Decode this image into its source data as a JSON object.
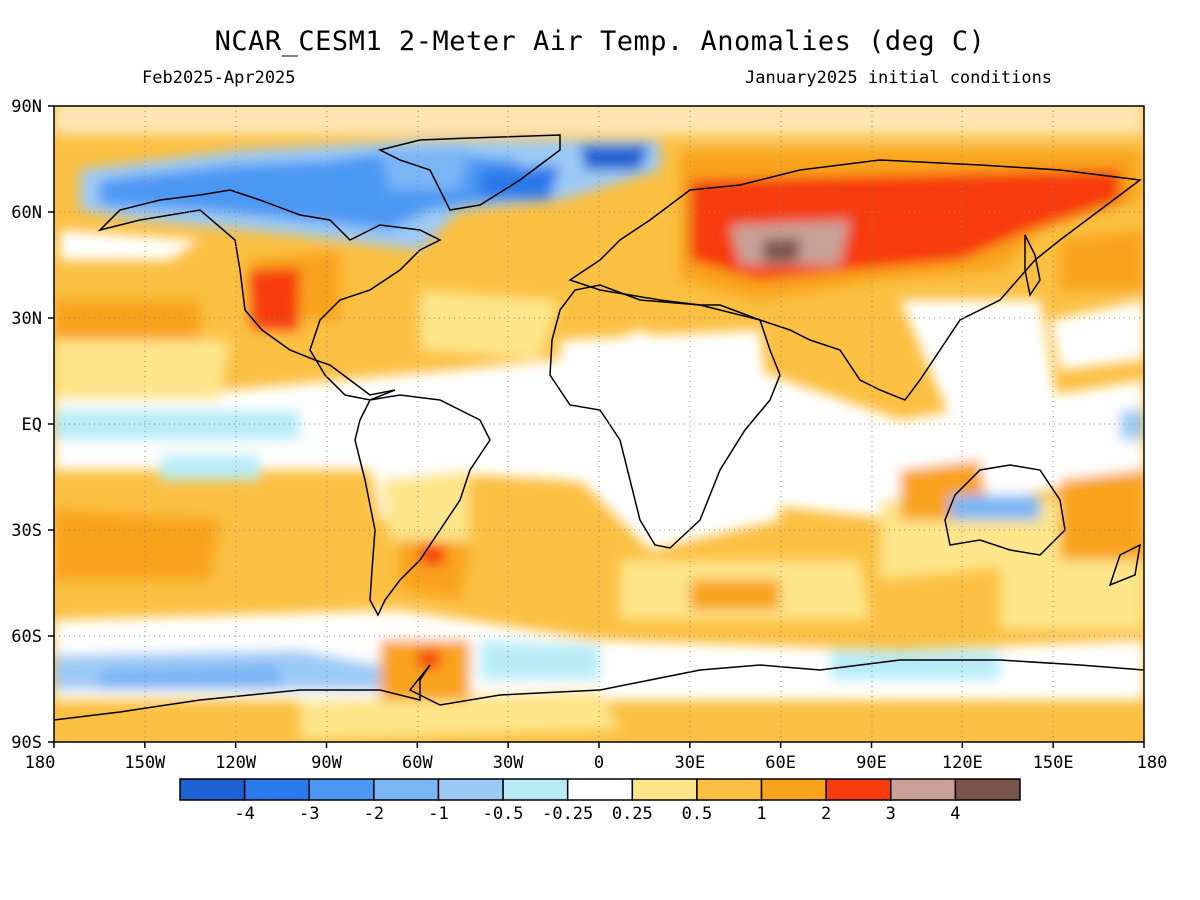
{
  "title": "NCAR_CESM1 2-Meter Air Temp. Anomalies (deg C)",
  "period": "Feb2025-Apr2025",
  "init": "January2025 initial conditions",
  "lat_ticks": [
    "90N",
    "60N",
    "30N",
    "EQ",
    "30S",
    "60S",
    "90S"
  ],
  "lon_ticks": [
    "180",
    "150W",
    "120W",
    "90W",
    "60W",
    "30W",
    "0",
    "30E",
    "60E",
    "90E",
    "120E",
    "150E",
    "180"
  ],
  "colorbar": {
    "colors": [
      "#1c62d2",
      "#2a79ea",
      "#4b98f4",
      "#7ab5f5",
      "#9ccaf6",
      "#b7ecf7",
      "#ffffff",
      "#fde58a",
      "#fbc042",
      "#f9a31b",
      "#f73b0a",
      "#c9a096",
      "#7a5448"
    ],
    "labels": [
      "-4",
      "-3",
      "-2",
      "-1",
      "-0.5",
      "-0.25",
      "0.25",
      "0.5",
      "1",
      "2",
      "3",
      "4"
    ]
  }
}
